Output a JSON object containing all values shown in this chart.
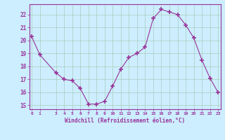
{
  "x": [
    0,
    1,
    3,
    4,
    5,
    6,
    7,
    8,
    9,
    10,
    11,
    12,
    13,
    14,
    15,
    16,
    17,
    18,
    19,
    20,
    21,
    22,
    23
  ],
  "y": [
    20.3,
    18.9,
    17.5,
    17.0,
    16.9,
    16.3,
    15.1,
    15.1,
    15.3,
    16.5,
    17.8,
    18.7,
    19.0,
    19.5,
    21.7,
    22.4,
    22.2,
    22.0,
    21.2,
    20.2,
    18.5,
    17.1,
    16.0
  ],
  "xlim": [
    -0.3,
    23.3
  ],
  "ylim": [
    14.7,
    22.8
  ],
  "yticks": [
    15,
    16,
    17,
    18,
    19,
    20,
    21,
    22
  ],
  "xticks": [
    0,
    1,
    3,
    4,
    5,
    6,
    7,
    8,
    9,
    10,
    11,
    12,
    13,
    14,
    15,
    16,
    17,
    18,
    19,
    20,
    21,
    22,
    23
  ],
  "xlabel": "Windchill (Refroidissement éolien,°C)",
  "line_color": "#993399",
  "marker": "+",
  "marker_size": 4,
  "bg_color": "#cceeff",
  "grid_color": "#aaccbb",
  "tick_color": "#993399",
  "label_color": "#993399",
  "spine_color": "#993399"
}
